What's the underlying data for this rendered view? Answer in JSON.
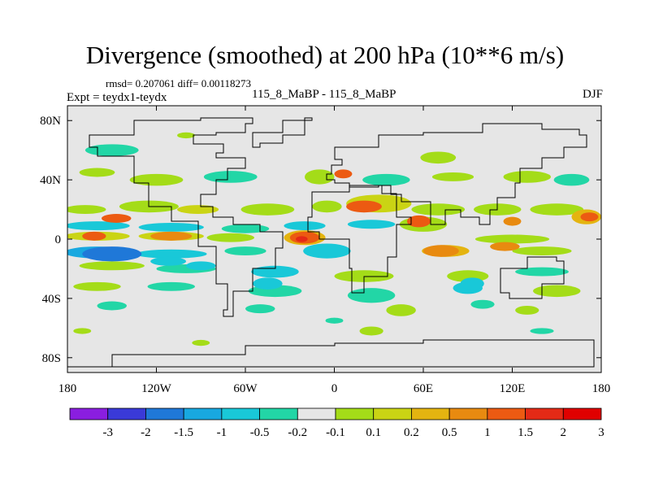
{
  "title": "Divergence (smoothed) at 200 hPa (10**6 m/s)",
  "stats": "rmsd= 0.207061 diff= 0.00118273",
  "experiment": "Expt = teydx1-teydx",
  "cases": "115_8_MaBP - 115_8_MaBP",
  "season": "DJF",
  "colors": {
    "background_field": "#e6e6e6",
    "coastline": "#000000"
  },
  "chart_data": {
    "type": "filled-contour-map",
    "variable": "Divergence (smoothed) at 200 hPa",
    "units": "10**6 m/s",
    "xlim": [
      -180,
      180
    ],
    "ylim": [
      -90,
      90
    ],
    "x_ticks": [
      {
        "value": -180,
        "label": "180"
      },
      {
        "value": -120,
        "label": "120W"
      },
      {
        "value": -60,
        "label": "60W"
      },
      {
        "value": 0,
        "label": "0"
      },
      {
        "value": 60,
        "label": "60E"
      },
      {
        "value": 120,
        "label": "120E"
      },
      {
        "value": 180,
        "label": "180"
      }
    ],
    "y_ticks": [
      {
        "value": 80,
        "label": "80N"
      },
      {
        "value": 40,
        "label": "40N"
      },
      {
        "value": 0,
        "label": "0"
      },
      {
        "value": -40,
        "label": "40S"
      },
      {
        "value": -80,
        "label": "80S"
      }
    ],
    "colorbar": {
      "colors": [
        "#8a1ee0",
        "#3a3ad8",
        "#1f78d8",
        "#18a8e0",
        "#19c8d8",
        "#22d6a6",
        "#e6e6e6",
        "#a4dc18",
        "#cad414",
        "#e4b410",
        "#e88a10",
        "#ec5a12",
        "#e42a16",
        "#e00000"
      ],
      "labels": [
        "-3",
        "-2",
        "-1.5",
        "-1",
        "-0.5",
        "-0.2",
        "-0.1",
        "0.1",
        "0.2",
        "0.5",
        "1",
        "1.5",
        "2",
        "3"
      ]
    },
    "anomaly_blobs": [
      {
        "lon": -162,
        "lat": 2,
        "rlon": 8,
        "rlat": 3,
        "level": 1
      },
      {
        "lon": -150,
        "lat": -10,
        "rlon": 20,
        "rlat": 5,
        "level": -2
      },
      {
        "lon": -110,
        "lat": 2,
        "rlon": 14,
        "rlat": 3,
        "level": 0.5
      },
      {
        "lon": -112,
        "lat": -15,
        "rlon": 12,
        "rlat": 3,
        "level": -1
      },
      {
        "lon": -147,
        "lat": 14,
        "rlon": 10,
        "rlat": 3,
        "level": 1
      },
      {
        "lon": -90,
        "lat": -18,
        "rlon": 10,
        "rlat": 3,
        "level": -1
      },
      {
        "lon": -45,
        "lat": -30,
        "rlon": 10,
        "rlat": 4,
        "level": -1
      },
      {
        "lon": -20,
        "lat": 1,
        "rlon": 10,
        "rlat": 4,
        "level": 1
      },
      {
        "lon": -22,
        "lat": 0,
        "rlon": 4,
        "rlat": 2,
        "level": 1.5
      },
      {
        "lon": 20,
        "lat": 22,
        "rlon": 12,
        "rlat": 4,
        "level": 1
      },
      {
        "lon": 6,
        "lat": 44,
        "rlon": 6,
        "rlat": 3,
        "level": 1
      },
      {
        "lon": 57,
        "lat": 12,
        "rlon": 8,
        "rlat": 4,
        "level": 1
      },
      {
        "lon": 72,
        "lat": -8,
        "rlon": 12,
        "rlat": 4,
        "level": 0.5
      },
      {
        "lon": 93,
        "lat": -30,
        "rlon": 8,
        "rlat": 4,
        "level": -1
      },
      {
        "lon": 115,
        "lat": -5,
        "rlon": 10,
        "rlat": 3,
        "level": 0.5
      },
      {
        "lon": 120,
        "lat": 12,
        "rlon": 6,
        "rlat": 3,
        "level": 0.5
      },
      {
        "lon": 172,
        "lat": 15,
        "rlon": 6,
        "rlat": 3,
        "level": 1
      }
    ]
  }
}
